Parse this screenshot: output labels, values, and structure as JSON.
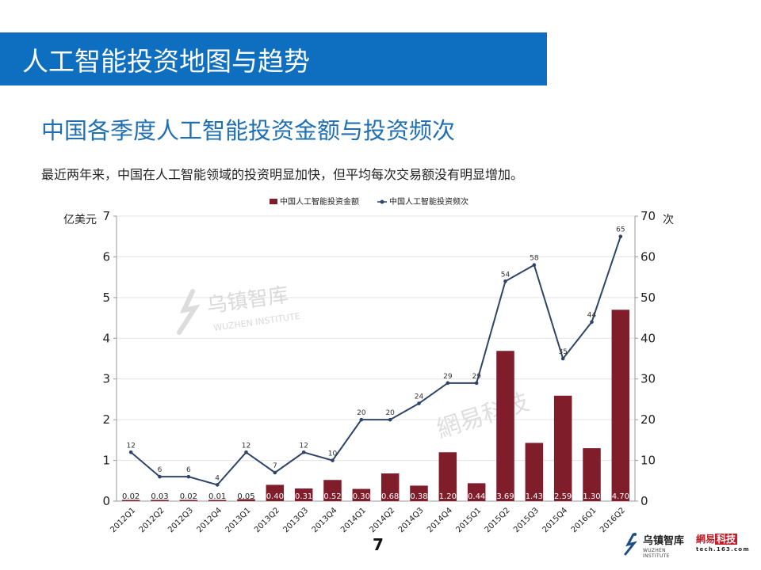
{
  "header": {
    "title": "人工智能投资地图与趋势",
    "banner_color": "#0e6fc0"
  },
  "section": {
    "subtitle": "中国各季度人工智能投资金额与投资频次",
    "description": "最近两年来，中国在人工智能领域的投资明显加快，但平均每次交易额没有明显增加。"
  },
  "footer": {
    "page_number": "7",
    "logo_wuzhen_cn": "乌镇智库",
    "logo_wuzhen_en": "WUZHEN INSTITUTE",
    "logo_netease_a": "網易",
    "logo_netease_b": "科技",
    "logo_netease_url": "tech.163.com"
  },
  "watermarks": {
    "wuzhen_cn": "乌镇智库",
    "wuzhen_en": "WUZHEN INSTITUTE",
    "netease": "網易科技"
  },
  "chart_data": {
    "type": "bar+line",
    "title": "",
    "legend_position": "top",
    "legend": [
      "中国人工智能投资金额",
      "中国人工智能投资频次"
    ],
    "categories": [
      "2012Q1",
      "2012Q2",
      "2012Q3",
      "2012Q4",
      "2013Q1",
      "2013Q2",
      "2013Q3",
      "2013Q4",
      "2014Q1",
      "2014Q2",
      "2014Q3",
      "2014Q4",
      "2015Q1",
      "2015Q2",
      "2015Q3",
      "2015Q4",
      "2016Q1",
      "2016Q2"
    ],
    "series": [
      {
        "name": "中国人工智能投资金额",
        "type": "bar",
        "axis": "left",
        "color": "#7f1d2b",
        "values": [
          0.02,
          0.03,
          0.02,
          0.01,
          0.05,
          0.4,
          0.31,
          0.52,
          0.3,
          0.68,
          0.38,
          1.2,
          0.44,
          3.69,
          1.43,
          2.59,
          1.3,
          4.7
        ],
        "labels": [
          "0.02",
          "0.03",
          "0.02",
          "0.01",
          "0.05",
          "0.40",
          "0.31",
          "0.52",
          "0.30",
          "0.68",
          "0.38",
          "1.20",
          "0.44",
          "3.69",
          "1.43",
          "2.59",
          "1.30",
          "4.70"
        ]
      },
      {
        "name": "中国人工智能投资频次",
        "type": "line",
        "axis": "right",
        "color": "#2e4468",
        "values": [
          12,
          6,
          6,
          4,
          12,
          7,
          12,
          10,
          20,
          20,
          24,
          29,
          29,
          54,
          58,
          35,
          44,
          65
        ]
      }
    ],
    "ylabel": "亿美元",
    "ylim": [
      0,
      7
    ],
    "yticks": [
      0,
      1,
      2,
      3,
      4,
      5,
      6,
      7
    ],
    "y2label": "次",
    "y2lim": [
      0,
      70
    ],
    "y2ticks": [
      0,
      10,
      20,
      30,
      40,
      50,
      60,
      70
    ],
    "grid": true
  }
}
